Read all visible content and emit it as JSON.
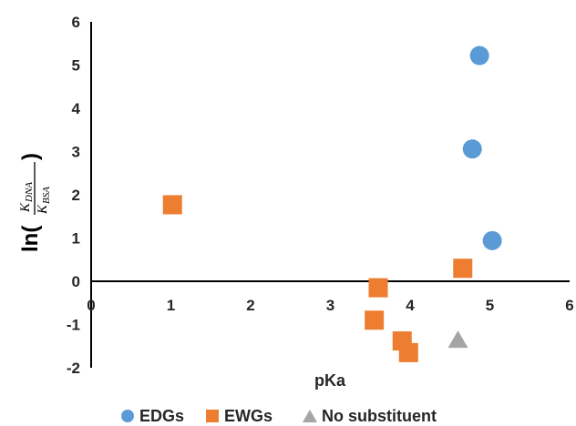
{
  "chart_data": {
    "type": "scatter",
    "xlabel": "pKa",
    "ylabel": {
      "prefix": "ln(",
      "numerator": "K",
      "numerator_sub": "DNA",
      "denominator": "K",
      "denominator_sub": "BSA",
      "suffix": ")"
    },
    "xlim": [
      0,
      6
    ],
    "ylim": [
      -2,
      6
    ],
    "xticks": [
      "0",
      "1",
      "2",
      "3",
      "4",
      "5",
      "6"
    ],
    "yticks": [
      "-2",
      "-1",
      "0",
      "1",
      "2",
      "3",
      "4",
      "5",
      "6"
    ],
    "grid": false,
    "legend_position": "bottom",
    "series": [
      {
        "name": "EDGs",
        "marker": "circle",
        "color": "#5B9BD5",
        "points": [
          [
            4.87,
            5.22
          ],
          [
            4.78,
            3.06
          ],
          [
            5.03,
            0.94
          ]
        ]
      },
      {
        "name": "EWGs",
        "marker": "square",
        "color": "#ED7D31",
        "points": [
          [
            1.02,
            1.77
          ],
          [
            3.6,
            -0.15
          ],
          [
            3.55,
            -0.9
          ],
          [
            4.66,
            0.3
          ],
          [
            3.9,
            -1.38
          ],
          [
            3.98,
            -1.65
          ]
        ]
      },
      {
        "name": "No substituent",
        "marker": "triangle",
        "color": "#A5A5A5",
        "points": [
          [
            4.6,
            -1.35
          ]
        ]
      }
    ]
  }
}
